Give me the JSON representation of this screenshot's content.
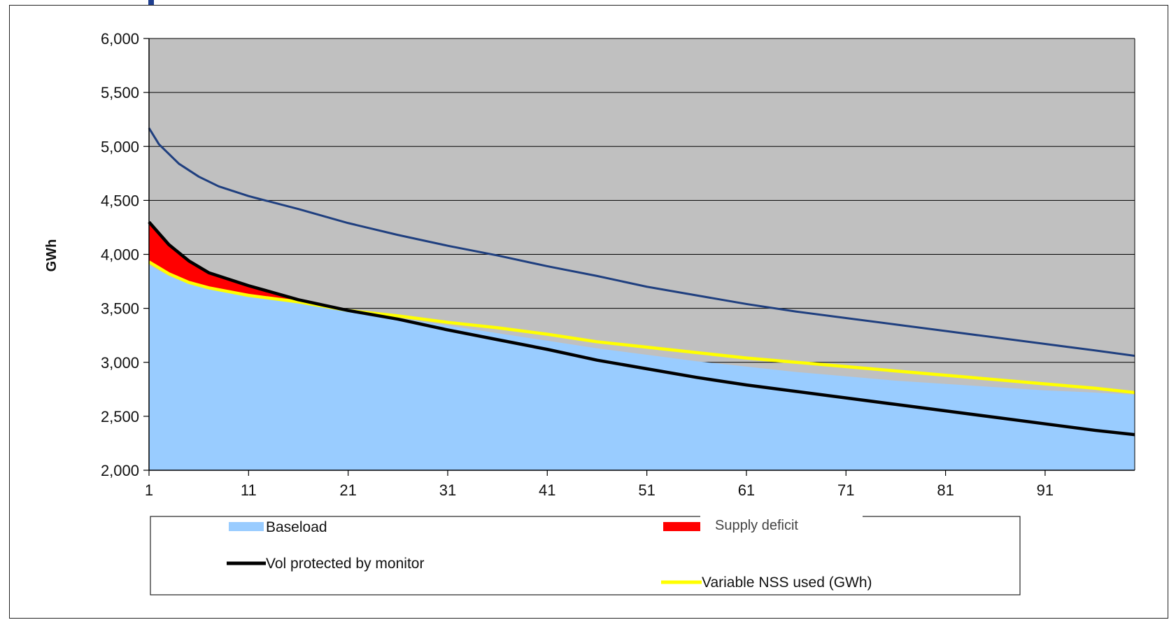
{
  "chart_data": {
    "type": "area",
    "xlabel": "",
    "ylabel": "GWh",
    "xlim": [
      1,
      100
    ],
    "ylim": [
      2000,
      6000
    ],
    "x_ticks": [
      1,
      11,
      21,
      31,
      41,
      51,
      61,
      71,
      81,
      91
    ],
    "y_ticks": [
      "2,000",
      "2,500",
      "3,000",
      "3,500",
      "4,000",
      "4,500",
      "5,000",
      "5,500",
      "6,000"
    ],
    "y_tick_values": [
      2000,
      2500,
      3000,
      3500,
      4000,
      4500,
      5000,
      5500,
      6000
    ],
    "grid": "horizontal",
    "background_color": "#c0c0c0",
    "series": [
      {
        "name": "Baseload",
        "kind": "area",
        "color": "#99ccff",
        "points": [
          [
            1,
            3900
          ],
          [
            3,
            3800
          ],
          [
            5,
            3730
          ],
          [
            7,
            3680
          ],
          [
            11,
            3610
          ],
          [
            16,
            3550
          ],
          [
            21,
            3480
          ],
          [
            26,
            3410
          ],
          [
            31,
            3340
          ],
          [
            36,
            3270
          ],
          [
            41,
            3200
          ],
          [
            46,
            3130
          ],
          [
            51,
            3070
          ],
          [
            56,
            3010
          ],
          [
            61,
            2960
          ],
          [
            66,
            2910
          ],
          [
            71,
            2870
          ],
          [
            76,
            2830
          ],
          [
            81,
            2800
          ],
          [
            86,
            2770
          ],
          [
            91,
            2740
          ],
          [
            96,
            2720
          ],
          [
            100,
            2700
          ]
        ]
      },
      {
        "name": "Supply deficit",
        "kind": "band",
        "color": "#ff0000",
        "lower": [
          [
            1,
            3930
          ],
          [
            3,
            3820
          ],
          [
            5,
            3750
          ],
          [
            7,
            3700
          ],
          [
            11,
            3630
          ],
          [
            14,
            3580
          ],
          [
            17,
            3540
          ],
          [
            21,
            3480
          ]
        ],
        "upper": [
          [
            1,
            4290
          ],
          [
            3,
            4080
          ],
          [
            5,
            3930
          ],
          [
            7,
            3820
          ],
          [
            11,
            3700
          ],
          [
            14,
            3630
          ],
          [
            17,
            3570
          ],
          [
            21,
            3480
          ]
        ]
      },
      {
        "name": "Vol protected by monitor",
        "kind": "line",
        "color": "#000000",
        "points": [
          [
            1,
            4300
          ],
          [
            3,
            4090
          ],
          [
            5,
            3940
          ],
          [
            7,
            3830
          ],
          [
            11,
            3710
          ],
          [
            16,
            3580
          ],
          [
            21,
            3480
          ],
          [
            26,
            3400
          ],
          [
            31,
            3300
          ],
          [
            36,
            3210
          ],
          [
            41,
            3120
          ],
          [
            46,
            3020
          ],
          [
            51,
            2940
          ],
          [
            56,
            2860
          ],
          [
            61,
            2790
          ],
          [
            66,
            2730
          ],
          [
            71,
            2670
          ],
          [
            76,
            2610
          ],
          [
            81,
            2550
          ],
          [
            86,
            2490
          ],
          [
            91,
            2430
          ],
          [
            96,
            2370
          ],
          [
            100,
            2330
          ]
        ]
      },
      {
        "name": "Variable NSS used (GWh)",
        "kind": "line",
        "color": "#ffff00",
        "points": [
          [
            1,
            3930
          ],
          [
            3,
            3820
          ],
          [
            5,
            3740
          ],
          [
            7,
            3690
          ],
          [
            11,
            3620
          ],
          [
            16,
            3560
          ],
          [
            21,
            3480
          ],
          [
            26,
            3430
          ],
          [
            31,
            3370
          ],
          [
            36,
            3320
          ],
          [
            41,
            3260
          ],
          [
            46,
            3190
          ],
          [
            51,
            3140
          ],
          [
            56,
            3090
          ],
          [
            61,
            3040
          ],
          [
            66,
            3000
          ],
          [
            71,
            2960
          ],
          [
            76,
            2920
          ],
          [
            81,
            2880
          ],
          [
            86,
            2840
          ],
          [
            91,
            2800
          ],
          [
            96,
            2760
          ],
          [
            100,
            2720
          ]
        ]
      },
      {
        "name": "",
        "kind": "line",
        "color": "#1f3f7f",
        "points": [
          [
            1,
            5170
          ],
          [
            2,
            5020
          ],
          [
            4,
            4840
          ],
          [
            6,
            4720
          ],
          [
            8,
            4630
          ],
          [
            11,
            4540
          ],
          [
            16,
            4420
          ],
          [
            21,
            4290
          ],
          [
            26,
            4180
          ],
          [
            31,
            4080
          ],
          [
            36,
            3990
          ],
          [
            41,
            3890
          ],
          [
            46,
            3800
          ],
          [
            51,
            3700
          ],
          [
            56,
            3620
          ],
          [
            61,
            3540
          ],
          [
            66,
            3470
          ],
          [
            71,
            3410
          ],
          [
            76,
            3350
          ],
          [
            81,
            3290
          ],
          [
            86,
            3230
          ],
          [
            91,
            3170
          ],
          [
            96,
            3110
          ],
          [
            100,
            3060
          ]
        ]
      }
    ],
    "legend": {
      "placement": "bottom",
      "entries": [
        {
          "label": "Baseload",
          "color": "#99ccff",
          "style": "patch"
        },
        {
          "label": "Supply deficit",
          "color": "#ff0000",
          "style": "patch"
        },
        {
          "label": "Vol protected by monitor",
          "color": "#000000",
          "style": "line"
        },
        {
          "label": "Variable NSS used (GWh)",
          "color": "#ffff00",
          "style": "line"
        }
      ]
    }
  }
}
